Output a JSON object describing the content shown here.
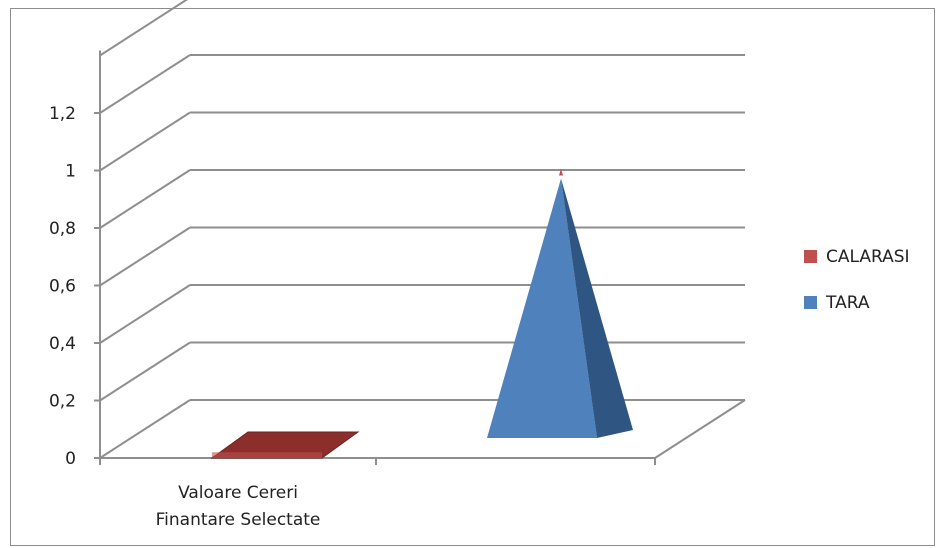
{
  "chart_data": {
    "type": "bar",
    "subtype": "3d-pyramid",
    "categories": [
      "Valoare Cereri Finantare Selectate"
    ],
    "category_label_lines": [
      "Valoare Cereri",
      "Finantare Selectate"
    ],
    "series": [
      {
        "name": "CALARASI",
        "values": [
          0.02
        ],
        "color": "#c0504d"
      },
      {
        "name": "TARA",
        "values": [
          1.0
        ],
        "color": "#4f81bd"
      }
    ],
    "y_ticks": [
      "0",
      "0,2",
      "0,4",
      "0,6",
      "0,8",
      "1",
      "1,2"
    ],
    "ylim": [
      0,
      1.4
    ],
    "grid": true,
    "legend_position": "right",
    "title": "",
    "xlabel": "",
    "ylabel": ""
  }
}
